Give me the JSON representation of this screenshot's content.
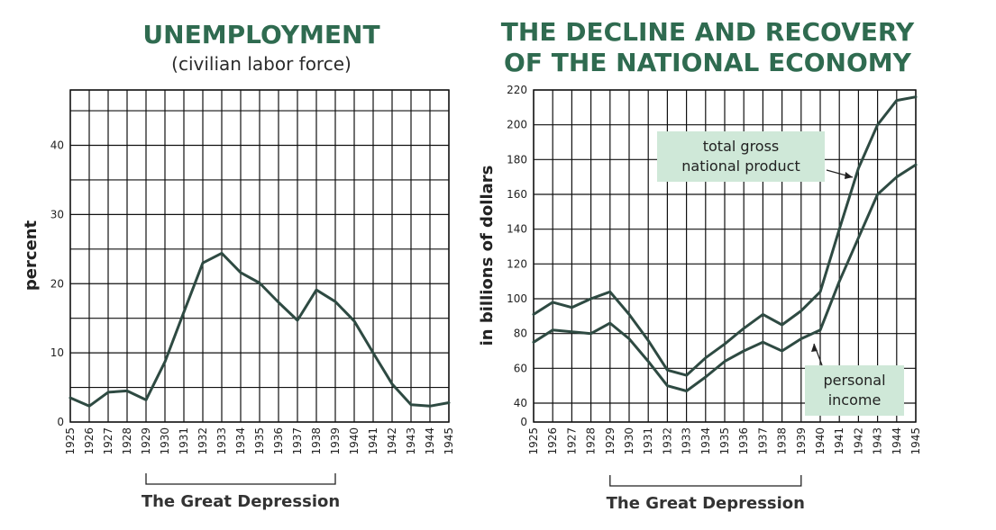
{
  "chart_data": [
    {
      "type": "line",
      "title": "UNEMPLOYMENT",
      "subtitle": "(civilian labor force)",
      "ylabel": "percent",
      "xlabel": "",
      "ylim": [
        0,
        48
      ],
      "yticks": [
        0,
        10,
        20,
        30,
        40
      ],
      "x": [
        "1925",
        "1926",
        "1927",
        "1928",
        "1929",
        "1930",
        "1931",
        "1932",
        "1933",
        "1934",
        "1935",
        "1936",
        "1937",
        "1938",
        "1939",
        "1940",
        "1941",
        "1942",
        "1943",
        "1944",
        "1945"
      ],
      "grid": true,
      "series": [
        {
          "values": [
            3.5,
            2.3,
            4.3,
            4.5,
            3.2,
            8.7,
            15.9,
            23.0,
            24.4,
            21.6,
            20.1,
            17.3,
            14.7,
            19.1,
            17.4,
            14.6,
            10.0,
            5.5,
            2.5,
            2.3,
            2.8
          ]
        }
      ],
      "annotation": "The Great Depression",
      "annotation_range": [
        "1929",
        "1939"
      ]
    },
    {
      "type": "line",
      "title_lines": [
        "THE DECLINE AND RECOVERY",
        "OF THE NATIONAL ECONOMY"
      ],
      "ylabel": "in billions of dollars",
      "xlabel": "",
      "ylim": [
        0,
        220
      ],
      "yticks": [
        0,
        40,
        60,
        80,
        100,
        120,
        140,
        160,
        180,
        200,
        220
      ],
      "x": [
        "1925",
        "1926",
        "1927",
        "1928",
        "1929",
        "1930",
        "1931",
        "1932",
        "1933",
        "1934",
        "1935",
        "1936",
        "1937",
        "1938",
        "1939",
        "1940",
        "1941",
        "1942",
        "1943",
        "1944",
        "1945"
      ],
      "grid": true,
      "series": [
        {
          "name": "total gross national product",
          "label_lines": [
            "total gross",
            "national product"
          ],
          "values": [
            91,
            98,
            95,
            100,
            104,
            91,
            76,
            59,
            56,
            66,
            74,
            83,
            91,
            85,
            93,
            104,
            140,
            175,
            200,
            214,
            216
          ]
        },
        {
          "name": "personal income",
          "label_lines": [
            "personal",
            "income"
          ],
          "values": [
            75,
            82,
            81,
            80,
            86,
            77,
            64,
            50,
            47,
            55,
            64,
            70,
            75,
            70,
            77,
            82,
            110,
            135,
            160,
            170,
            177
          ]
        }
      ],
      "annotation": "The Great Depression",
      "annotation_range": [
        "1929",
        "1939"
      ]
    }
  ],
  "colors": {
    "title": "#2f6b50",
    "line": "#2e4a42",
    "callout": "#cfe8d8"
  }
}
